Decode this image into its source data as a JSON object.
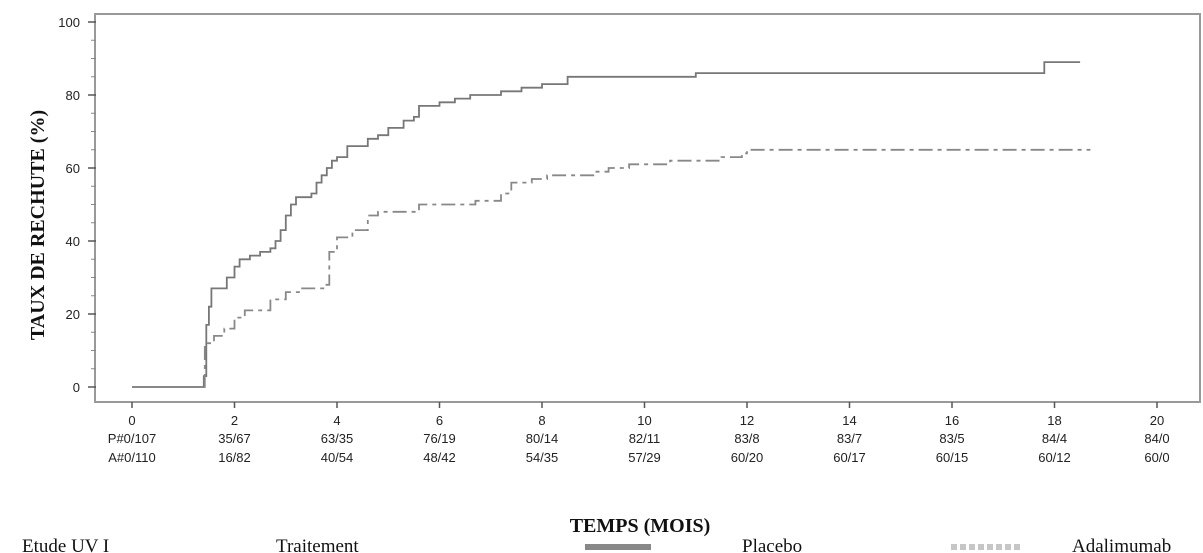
{
  "chart_data": {
    "type": "line",
    "xlabel": "TEMPS (MOIS)",
    "ylabel": "TAUX DE RECHUTE (%)",
    "xlim": [
      0,
      20
    ],
    "ylim": [
      0,
      100
    ],
    "x_ticks": [
      "0",
      "2",
      "4",
      "6",
      "8",
      "10",
      "12",
      "14",
      "16",
      "18",
      "20"
    ],
    "y_ticks": [
      "0",
      "20",
      "40",
      "60",
      "80",
      "100"
    ],
    "grid": false,
    "series": [
      {
        "name": "Placebo",
        "style": "solid",
        "color": "#777777",
        "points": [
          [
            0,
            0
          ],
          [
            1.35,
            0
          ],
          [
            1.4,
            3
          ],
          [
            1.45,
            17
          ],
          [
            1.5,
            22
          ],
          [
            1.55,
            27
          ],
          [
            1.8,
            27
          ],
          [
            1.85,
            30
          ],
          [
            2.0,
            33
          ],
          [
            2.1,
            35
          ],
          [
            2.3,
            36
          ],
          [
            2.5,
            37
          ],
          [
            2.7,
            38
          ],
          [
            2.8,
            40
          ],
          [
            2.9,
            43
          ],
          [
            3.0,
            47
          ],
          [
            3.1,
            50
          ],
          [
            3.2,
            52
          ],
          [
            3.5,
            53
          ],
          [
            3.6,
            56
          ],
          [
            3.7,
            58
          ],
          [
            3.8,
            60
          ],
          [
            3.9,
            62
          ],
          [
            4.0,
            63
          ],
          [
            4.2,
            66
          ],
          [
            4.6,
            68
          ],
          [
            4.8,
            69
          ],
          [
            5.0,
            71
          ],
          [
            5.3,
            73
          ],
          [
            5.5,
            74
          ],
          [
            5.6,
            77
          ],
          [
            5.8,
            77
          ],
          [
            6.0,
            78
          ],
          [
            6.3,
            79
          ],
          [
            6.6,
            80
          ],
          [
            7.2,
            81
          ],
          [
            7.6,
            82
          ],
          [
            8.0,
            83
          ],
          [
            8.5,
            85
          ],
          [
            11.0,
            86
          ],
          [
            16.7,
            86
          ],
          [
            17.8,
            89
          ],
          [
            18.5,
            89
          ]
        ]
      },
      {
        "name": "Adalimumab",
        "style": "dashed",
        "color": "#888888",
        "points": [
          [
            1.4,
            0
          ],
          [
            1.42,
            12
          ],
          [
            1.6,
            14
          ],
          [
            1.8,
            16
          ],
          [
            2.0,
            19
          ],
          [
            2.2,
            21
          ],
          [
            2.7,
            24
          ],
          [
            3.0,
            26
          ],
          [
            3.3,
            27
          ],
          [
            3.75,
            28
          ],
          [
            3.85,
            37
          ],
          [
            4.0,
            41
          ],
          [
            4.3,
            43
          ],
          [
            4.6,
            47
          ],
          [
            4.8,
            48
          ],
          [
            5.3,
            48
          ],
          [
            5.6,
            50
          ],
          [
            6.0,
            50
          ],
          [
            6.7,
            51
          ],
          [
            7.2,
            53
          ],
          [
            7.4,
            56
          ],
          [
            7.8,
            57
          ],
          [
            8.1,
            58
          ],
          [
            9.0,
            59
          ],
          [
            9.3,
            60
          ],
          [
            9.7,
            61
          ],
          [
            10.5,
            62
          ],
          [
            11.5,
            63
          ],
          [
            11.9,
            64
          ],
          [
            12.0,
            65
          ],
          [
            18.7,
            65
          ]
        ]
      }
    ],
    "risk_table": {
      "placebo_prefix": "P#",
      "adalimumab_prefix": "A#",
      "placebo_values": [
        "0/107",
        "35/67",
        "63/35",
        "76/19",
        "80/14",
        "82/11",
        "83/8",
        "83/7",
        "83/5",
        "84/4",
        "84/0"
      ],
      "adalimumab_values": [
        "0/110",
        "16/82",
        "40/54",
        "48/42",
        "54/35",
        "57/29",
        "60/20",
        "60/17",
        "60/15",
        "60/12",
        "60/0"
      ]
    },
    "legend": {
      "study": "Etude UV I",
      "treatment": "Traitement",
      "placebo": "Placebo",
      "adalimumab": "Adalimumab"
    }
  }
}
